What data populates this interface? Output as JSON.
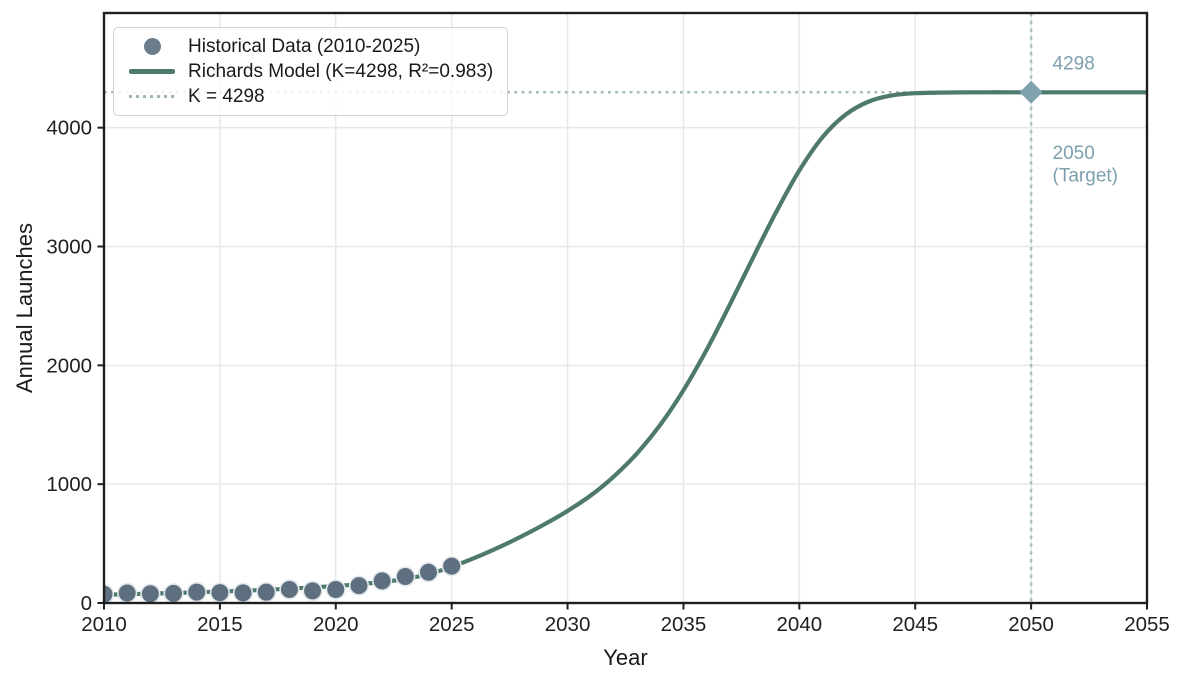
{
  "chart_data": {
    "type": "line",
    "title": "",
    "xlabel": "Year",
    "ylabel": "Annual Launches",
    "xlim": [
      2010,
      2055
    ],
    "ylim": [
      0,
      4965
    ],
    "xticks": [
      2010,
      2015,
      2020,
      2025,
      2030,
      2035,
      2040,
      2045,
      2050,
      2055
    ],
    "yticks": [
      0,
      1000,
      2000,
      3000,
      4000
    ],
    "grid": true,
    "legend_position": "upper left",
    "series": [
      {
        "name": "Historical Data (2010-2025)",
        "type": "scatter",
        "color": "#5e7080",
        "edge_color": "#e3e8ec",
        "x": [
          2010,
          2011,
          2012,
          2013,
          2014,
          2015,
          2016,
          2017,
          2018,
          2019,
          2020,
          2021,
          2022,
          2023,
          2024,
          2025
        ],
        "y": [
          74,
          84,
          78,
          81,
          92,
          87,
          85,
          91,
          114,
          102,
          114,
          146,
          186,
          223,
          259,
          310
        ]
      },
      {
        "name": "Richards Model (K=4298, R²=0.983)",
        "type": "line",
        "color": "#4e7a6d",
        "x": [
          2010,
          2011,
          2012,
          2013,
          2014,
          2015,
          2016,
          2017,
          2018,
          2019,
          2020,
          2021,
          2022,
          2023,
          2024,
          2025,
          2026,
          2027,
          2028,
          2029,
          2030,
          2031,
          2032,
          2033,
          2034,
          2035,
          2036,
          2037,
          2038,
          2039,
          2040,
          2041,
          2042,
          2043,
          2044,
          2045,
          2046,
          2047,
          2048,
          2049,
          2050,
          2051,
          2052,
          2053,
          2054,
          2055
        ],
        "y": [
          70,
          74,
          79,
          84,
          90,
          96,
          103,
          111,
          120,
          131,
          143,
          158,
          177,
          203,
          243,
          305,
          380,
          465,
          560,
          662,
          775,
          905,
          1065,
          1260,
          1500,
          1790,
          2130,
          2510,
          2905,
          3290,
          3640,
          3920,
          4110,
          4220,
          4272,
          4290,
          4295,
          4297,
          4298,
          4298,
          4298,
          4298,
          4298,
          4298,
          4298,
          4298
        ]
      },
      {
        "name": "K = 4298",
        "type": "hline",
        "color": "#4e7a6d",
        "alpha": 0.5,
        "value": 4298
      }
    ],
    "target_line": {
      "x": 2050,
      "color": "#7d9fad",
      "alpha": 0.6
    },
    "target_marker": {
      "x": 2050,
      "y": 4298,
      "shape": "diamond",
      "color": "#7fa2ae"
    },
    "annotations": [
      {
        "text": "4298",
        "x": 2050.45,
        "y": 4490,
        "color": "#7d9fad"
      },
      {
        "text": "2050",
        "x": 2050.45,
        "y": 3735,
        "color": "#7d9fad"
      },
      {
        "text": "(Target)",
        "x": 2050.45,
        "y": 3545,
        "color": "#7d9fad"
      }
    ],
    "grid_color": "#e8e8e8",
    "spine_color": "#1f1f1f"
  },
  "legend": {
    "items": [
      {
        "label": "Historical Data (2010-2025)"
      },
      {
        "label": "Richards Model (K=4298, R²=0.983)"
      },
      {
        "label": "K = 4298"
      }
    ]
  }
}
